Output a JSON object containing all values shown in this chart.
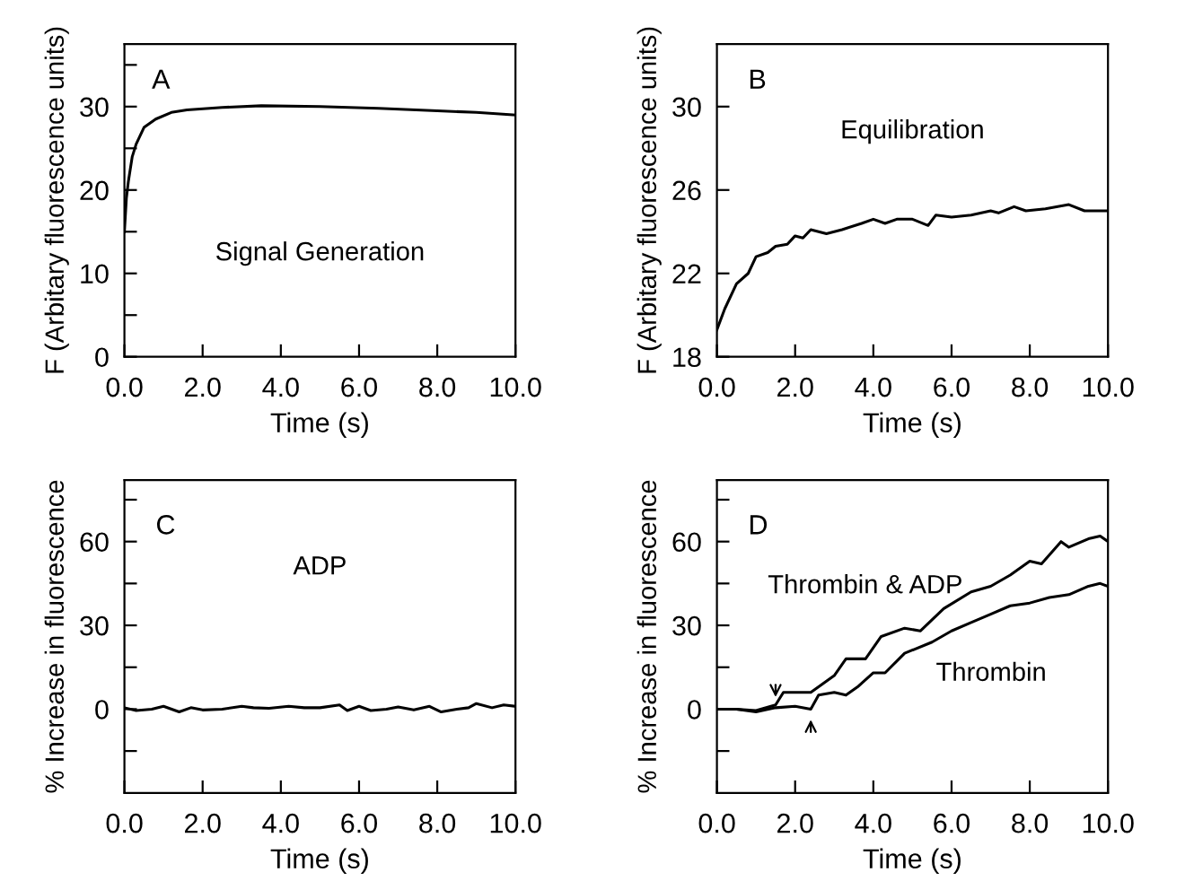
{
  "chart_data": [
    {
      "type": "line",
      "xlabel": "Time (s)",
      "ylabel": "F (Arbitary fluorescence units)",
      "annotations": [
        "A",
        "Signal Generation"
      ],
      "xlim": [
        0,
        10
      ],
      "ylim": [
        0,
        37.5
      ],
      "xticks": [
        {
          "value": 0,
          "label": "0.0"
        },
        {
          "value": 2,
          "label": "2.0"
        },
        {
          "value": 4,
          "label": "4.0"
        },
        {
          "value": 6,
          "label": "6.0"
        },
        {
          "value": 8,
          "label": "8.0"
        },
        {
          "value": 10,
          "label": "10.0"
        }
      ],
      "yticks": [
        0,
        {
          "value": 5,
          "label": null
        },
        10,
        {
          "value": 15,
          "label": null
        },
        20,
        {
          "value": 25,
          "label": null
        },
        30,
        {
          "value": 35,
          "label": null
        }
      ],
      "grid": false,
      "legend": false,
      "series": [
        {
          "color": "#000000",
          "x": [
            0,
            0.05,
            0.1,
            0.2,
            0.3,
            0.5,
            0.8,
            1.2,
            1.6,
            2.5,
            3.5,
            5,
            6.5,
            8,
            9,
            10
          ],
          "values": [
            15,
            19,
            21,
            24,
            25.5,
            27.5,
            28.5,
            29.3,
            29.6,
            29.9,
            30.1,
            30.0,
            29.8,
            29.5,
            29.3,
            29.0
          ]
        }
      ]
    },
    {
      "type": "line",
      "xlabel": "Time (s)",
      "ylabel": "F (Arbitary fluorescence units)",
      "annotations": [
        "B",
        "Equilibration"
      ],
      "xlim": [
        0,
        10
      ],
      "ylim": [
        18,
        33
      ],
      "xticks": [
        {
          "value": 0,
          "label": "0.0"
        },
        {
          "value": 2,
          "label": "2.0"
        },
        {
          "value": 4,
          "label": "4.0"
        },
        {
          "value": 6,
          "label": "6.0"
        },
        {
          "value": 8,
          "label": "8.0"
        },
        {
          "value": 10,
          "label": "10.0"
        }
      ],
      "yticks": [
        18,
        22,
        26,
        30
      ],
      "grid": false,
      "legend": false,
      "series": [
        {
          "color": "#000000",
          "x": [
            0,
            0.2,
            0.5,
            0.8,
            1.0,
            1.3,
            1.5,
            1.8,
            2.0,
            2.2,
            2.4,
            2.8,
            3.2,
            3.7,
            4.0,
            4.3,
            4.6,
            5.0,
            5.4,
            5.6,
            6.0,
            6.5,
            7.0,
            7.2,
            7.6,
            7.9,
            8.4,
            9.0,
            9.4,
            10
          ],
          "values": [
            19.3,
            20.3,
            21.5,
            22.0,
            22.8,
            23.0,
            23.3,
            23.4,
            23.8,
            23.7,
            24.1,
            23.9,
            24.1,
            24.4,
            24.6,
            24.4,
            24.6,
            24.6,
            24.3,
            24.8,
            24.7,
            24.8,
            25.0,
            24.9,
            25.2,
            25.0,
            25.1,
            25.3,
            25.0,
            25.0
          ]
        }
      ]
    },
    {
      "type": "line",
      "xlabel": "Time (s)",
      "ylabel": "% Increase in fluorescence",
      "annotations": [
        "C",
        "ADP"
      ],
      "xlim": [
        0,
        10
      ],
      "ylim": [
        -30,
        82
      ],
      "xticks": [
        {
          "value": 0,
          "label": "0.0"
        },
        {
          "value": 2,
          "label": "2.0"
        },
        {
          "value": 4,
          "label": "4.0"
        },
        {
          "value": 6,
          "label": "6.0"
        },
        {
          "value": 8,
          "label": "8.0"
        },
        {
          "value": 10,
          "label": "10.0"
        }
      ],
      "yticks": [
        {
          "value": -15,
          "label": null
        },
        0,
        {
          "value": 15,
          "label": null
        },
        30,
        {
          "value": 45,
          "label": null
        },
        60,
        {
          "value": 75,
          "label": null
        }
      ],
      "grid": false,
      "legend": false,
      "series": [
        {
          "color": "#000000",
          "x": [
            0,
            0.3,
            0.7,
            1.0,
            1.4,
            1.7,
            2.0,
            2.5,
            3.0,
            3.3,
            3.7,
            4.2,
            4.6,
            5.0,
            5.5,
            5.7,
            6.0,
            6.3,
            6.7,
            7.0,
            7.4,
            7.8,
            8.1,
            8.5,
            8.8,
            9.0,
            9.4,
            9.7,
            10
          ],
          "values": [
            0.5,
            -0.5,
            0,
            1,
            -1,
            0.5,
            -0.3,
            0,
            1,
            0.5,
            0.3,
            1,
            0.5,
            0.5,
            1.5,
            -0.5,
            1,
            -0.5,
            0,
            0.8,
            -0.3,
            1,
            -1,
            0,
            0.5,
            2,
            0.5,
            1.5,
            1
          ]
        }
      ]
    },
    {
      "type": "line",
      "xlabel": "Time (s)",
      "ylabel": "% Increase in fluorescence",
      "annotations": [
        "D"
      ],
      "xlim": [
        0,
        10
      ],
      "ylim": [
        -30,
        82
      ],
      "xticks": [
        {
          "value": 0,
          "label": "0.0"
        },
        {
          "value": 2,
          "label": "2.0"
        },
        {
          "value": 4,
          "label": "4.0"
        },
        {
          "value": 6,
          "label": "6.0"
        },
        {
          "value": 8,
          "label": "8.0"
        },
        {
          "value": 10,
          "label": "10.0"
        }
      ],
      "yticks": [
        {
          "value": -15,
          "label": null
        },
        0,
        {
          "value": 15,
          "label": null
        },
        30,
        {
          "value": 45,
          "label": null
        },
        60,
        {
          "value": 75,
          "label": null
        }
      ],
      "grid": false,
      "legend": false,
      "series": [
        {
          "name": "Thrombin & ADP",
          "color": "#000000",
          "x": [
            0,
            0.5,
            1.0,
            1.5,
            1.7,
            2.4,
            3.0,
            3.3,
            3.8,
            4.2,
            4.8,
            5.2,
            5.8,
            6.5,
            7.0,
            7.5,
            8.0,
            8.3,
            8.8,
            9.0,
            9.5,
            9.8,
            10
          ],
          "values": [
            0,
            0,
            -0.5,
            1.5,
            6,
            6,
            12,
            18,
            18,
            26,
            29,
            28,
            36,
            42,
            44,
            48,
            53,
            52,
            60,
            58,
            61,
            62,
            60
          ]
        },
        {
          "name": "Thrombin",
          "color": "#000000",
          "x": [
            0,
            0.5,
            1.0,
            1.5,
            2.0,
            2.4,
            2.6,
            3.0,
            3.3,
            3.6,
            4.0,
            4.3,
            4.8,
            5.5,
            6.0,
            6.5,
            7.0,
            7.5,
            8.0,
            8.5,
            9.0,
            9.5,
            9.8,
            10
          ],
          "values": [
            0,
            0,
            -1,
            0.5,
            1,
            0,
            5,
            6,
            5,
            8,
            13,
            13,
            20,
            24,
            28,
            31,
            34,
            37,
            38,
            40,
            41,
            44,
            45,
            44
          ]
        }
      ]
    }
  ]
}
